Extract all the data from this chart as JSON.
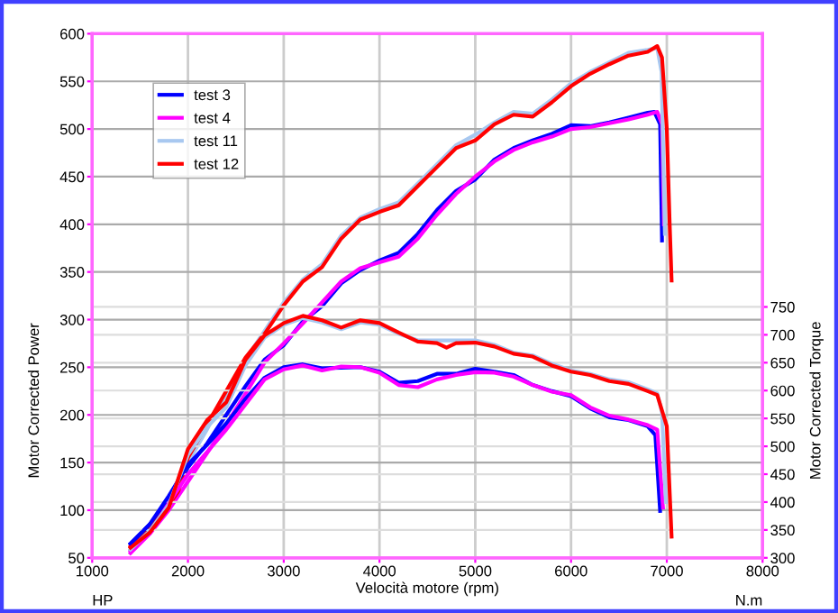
{
  "chart_data": {
    "type": "line",
    "xlabel": "Velocità motore (rpm)",
    "ylabel": "Motor Corrected Power",
    "y2label": "Motor Corrected Torque",
    "annotations": [
      "HP",
      "N.m"
    ],
    "xlim": [
      1000,
      8000
    ],
    "xticks": [
      1000,
      2000,
      3000,
      4000,
      5000,
      6000,
      7000,
      8000
    ],
    "ylim": [
      50,
      600
    ],
    "yticks": [
      50,
      100,
      150,
      200,
      250,
      300,
      350,
      400,
      450,
      500,
      550,
      600
    ],
    "y2lim": [
      300,
      1240
    ],
    "y2ticks": [
      300,
      350,
      400,
      450,
      500,
      550,
      600,
      650,
      700,
      750
    ],
    "grid": true,
    "legend": "top left",
    "marker": "none",
    "series": [
      {
        "name": "test 3",
        "color": "#0000ff",
        "axis": "y",
        "x": [
          1400,
          1600,
          1800,
          2000,
          2200,
          2400,
          2600,
          2800,
          3000,
          3200,
          3400,
          3600,
          3800,
          4000,
          4200,
          4400,
          4600,
          4800,
          5000,
          5200,
          5400,
          5600,
          5800,
          6000,
          6200,
          6400,
          6600,
          6800,
          6870,
          6930,
          6950
        ],
        "values": [
          65,
          85,
          108,
          145,
          170,
          200,
          230,
          258,
          273,
          298,
          314,
          338,
          352,
          362,
          370,
          390,
          415,
          435,
          447,
          468,
          480,
          488,
          495,
          504,
          503,
          507,
          512,
          517,
          518,
          505,
          383
        ]
      },
      {
        "name": "test 4",
        "color": "#ff00ff",
        "axis": "y",
        "x": [
          1400,
          1600,
          1800,
          2000,
          2200,
          2400,
          2600,
          2800,
          3000,
          3200,
          3400,
          3600,
          3800,
          4000,
          4200,
          4400,
          4600,
          4800,
          5000,
          5200,
          5400,
          5600,
          5800,
          6000,
          6200,
          6400,
          6600,
          6800,
          6900,
          6950,
          6970
        ],
        "values": [
          55,
          75,
          100,
          130,
          160,
          190,
          222,
          255,
          275,
          296,
          318,
          340,
          354,
          360,
          366,
          385,
          410,
          432,
          450,
          466,
          478,
          486,
          492,
          500,
          502,
          506,
          510,
          515,
          518,
          505,
          400
        ]
      },
      {
        "name": "test 11",
        "color": "#a8c8f0",
        "axis": "y",
        "x": [
          1400,
          1600,
          1800,
          2000,
          2200,
          2400,
          2600,
          2800,
          3000,
          3200,
          3400,
          3600,
          3800,
          4000,
          4200,
          4400,
          4600,
          4800,
          5000,
          5200,
          5400,
          5600,
          5800,
          6000,
          6200,
          6400,
          6600,
          6800,
          6900,
          6945,
          6980
        ],
        "values": [
          58,
          78,
          103,
          150,
          185,
          222,
          258,
          288,
          318,
          342,
          358,
          388,
          407,
          416,
          423,
          443,
          463,
          483,
          494,
          507,
          518,
          516,
          531,
          548,
          560,
          570,
          580,
          583,
          585,
          560,
          390
        ]
      },
      {
        "name": "test 12",
        "color": "#ff0000",
        "axis": "y",
        "x": [
          1400,
          1600,
          1800,
          1900,
          2000,
          2200,
          2400,
          2600,
          2800,
          3000,
          3200,
          3400,
          3600,
          3800,
          4000,
          4200,
          4400,
          4600,
          4800,
          5000,
          5200,
          5400,
          5600,
          5800,
          6000,
          6200,
          6400,
          6600,
          6800,
          6900,
          6950,
          7000,
          7030,
          7050
        ],
        "values": [
          62,
          80,
          105,
          120,
          155,
          190,
          225,
          260,
          285,
          315,
          340,
          355,
          385,
          405,
          413,
          420,
          440,
          460,
          480,
          488,
          505,
          515,
          513,
          528,
          545,
          558,
          568,
          577,
          581,
          587,
          575,
          500,
          400,
          341
        ]
      },
      {
        "color": "#0000ff",
        "axis": "y2",
        "x": [
          1400,
          1600,
          1800,
          2000,
          2200,
          2400,
          2600,
          2800,
          3000,
          3200,
          3400,
          3600,
          3800,
          4000,
          4200,
          4400,
          4600,
          4800,
          5000,
          5200,
          5400,
          5600,
          5800,
          6000,
          6200,
          6400,
          6600,
          6800,
          6880,
          6930
        ],
        "values": [
          325,
          360,
          411,
          467,
          503,
          541,
          585,
          623,
          642,
          647,
          640,
          641,
          642,
          634,
          614,
          617,
          630,
          630,
          639,
          634,
          628,
          610,
          599,
          590,
          568,
          552,
          547,
          536,
          520,
          384
        ]
      },
      {
        "color": "#ff00ff",
        "axis": "y2",
        "x": [
          1400,
          1600,
          1800,
          2000,
          2200,
          2400,
          2600,
          2800,
          3000,
          3200,
          3400,
          3600,
          3800,
          4000,
          4200,
          4400,
          4600,
          4800,
          5000,
          5200,
          5400,
          5600,
          5800,
          6000,
          6200,
          6400,
          6600,
          6800,
          6900,
          6960
        ],
        "values": [
          312,
          345,
          398,
          450,
          490,
          530,
          575,
          620,
          638,
          645,
          636,
          643,
          642,
          632,
          610,
          606,
          620,
          628,
          633,
          632,
          625,
          610,
          598,
          592,
          570,
          555,
          548,
          538,
          530,
          390
        ]
      },
      {
        "color": "#a8c8f0",
        "axis": "y2",
        "x": [
          1400,
          1600,
          1800,
          2000,
          2200,
          2400,
          2600,
          2800,
          3000,
          3200,
          3400,
          3600,
          3800,
          4000,
          4200,
          4400,
          4600,
          4800,
          5000,
          5200,
          5400,
          5600,
          5800,
          6000,
          6200,
          6400,
          6600,
          6800,
          6900,
          6950,
          6990
        ],
        "values": [
          315,
          348,
          395,
          485,
          535,
          570,
          645,
          695,
          718,
          730,
          722,
          710,
          722,
          718,
          702,
          690,
          690,
          690,
          690,
          682,
          668,
          663,
          648,
          636,
          630,
          620,
          615,
          602,
          595,
          560,
          400
        ]
      },
      {
        "color": "#ff0000",
        "axis": "y2",
        "x": [
          1400,
          1600,
          1800,
          2000,
          2200,
          2400,
          2600,
          2800,
          3000,
          3200,
          3400,
          3600,
          3800,
          4000,
          4200,
          4400,
          4600,
          4700,
          4800,
          5000,
          5200,
          5400,
          5600,
          5800,
          6000,
          6200,
          6400,
          6600,
          6800,
          6900,
          7000,
          7050
        ],
        "values": [
          318,
          345,
          390,
          495,
          547,
          579,
          655,
          699,
          721,
          734,
          726,
          713,
          726,
          721,
          704,
          688,
          685,
          677,
          685,
          686,
          679,
          666,
          661,
          645,
          634,
          628,
          617,
          612,
          599,
          592,
          536,
          338
        ]
      }
    ]
  }
}
